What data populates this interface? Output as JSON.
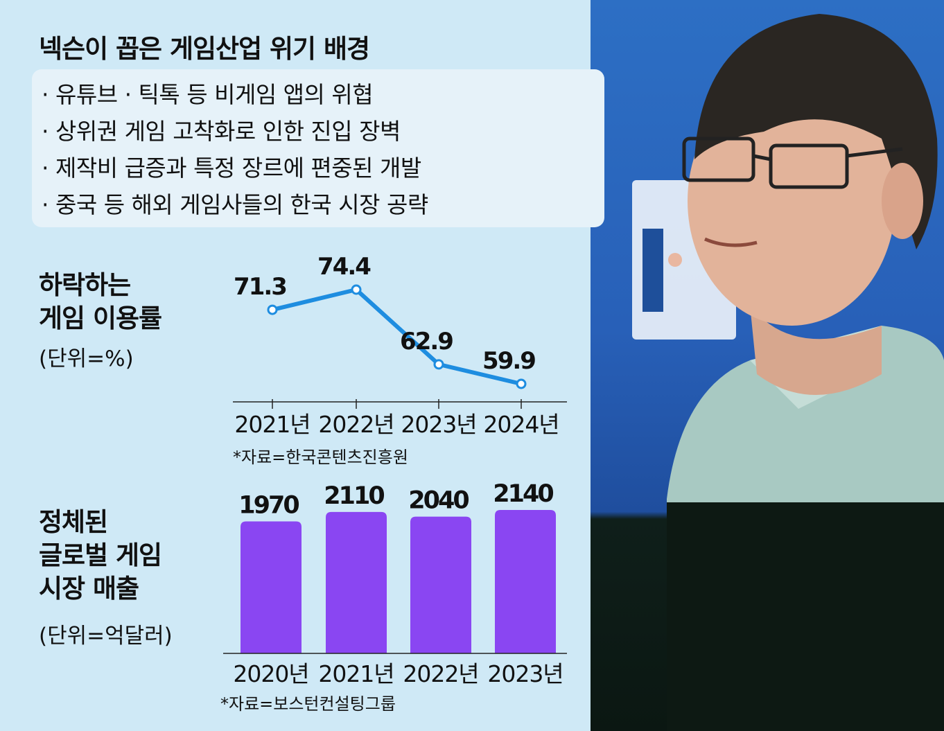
{
  "title": "넥슨이 꼽은 게임산업 위기 배경",
  "reasons": [
    "유튜브 · 틱톡 등 비게임 앱의 위협",
    "상위권 게임 고착화로 인한 진입 장벽",
    "제작비 급증과 특정 장르에 편중된 개발",
    "중국 등 해외 게임사들의 한국 시장 공략"
  ],
  "bullet": "·",
  "colors": {
    "panel_bg": "#cfe9f6",
    "box_bg": "#e6f2f9",
    "line": "#1e8de0",
    "bar": "#8a46f2"
  },
  "chart_data": [
    {
      "type": "line",
      "title_lines": [
        "하락하는",
        "게임 이용률"
      ],
      "unit": "(단위=%)",
      "categories": [
        "2021년",
        "2022년",
        "2023년",
        "2024년"
      ],
      "values": [
        71.3,
        74.4,
        62.9,
        59.9
      ],
      "value_labels": [
        "71.3",
        "74.4",
        "62.9",
        "59.9"
      ],
      "source": "*자료=한국콘텐츠진흥원"
    },
    {
      "type": "bar",
      "title_lines": [
        "정체된",
        "글로벌 게임",
        "시장 매출"
      ],
      "unit": "(단위=억달러)",
      "categories": [
        "2020년",
        "2021년",
        "2022년",
        "2023년"
      ],
      "values": [
        1970,
        2110,
        2040,
        2140
      ],
      "value_labels": [
        "1970",
        "2110",
        "2040",
        "2140"
      ],
      "source": "*자료=보스턴컨설팅그룹"
    }
  ]
}
